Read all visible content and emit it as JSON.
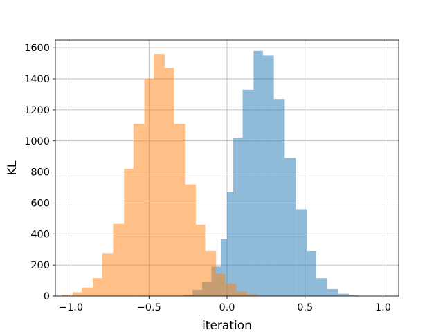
{
  "chart_data": {
    "type": "histogram",
    "title": "",
    "xlabel": "iteration",
    "ylabel": "KL",
    "xlim": [
      -1.1,
      1.1
    ],
    "ylim": [
      0,
      1650
    ],
    "grid": true,
    "legend": "none",
    "x_ticks": [
      -1.0,
      -0.5,
      0.0,
      0.5,
      1.0
    ],
    "x_tick_labels": [
      "−1.0",
      "−0.5",
      "0.0",
      "0.5",
      "1.0"
    ],
    "y_ticks": [
      0,
      200,
      400,
      600,
      800,
      1000,
      1200,
      1400,
      1600
    ],
    "y_tick_labels": [
      "0",
      "200",
      "400",
      "600",
      "800",
      "1000",
      "1200",
      "1400",
      "1600"
    ],
    "series": [
      {
        "color": "#1f77b4",
        "opacity": 0.5,
        "bins": [
          {
            "x0": -0.34,
            "x1": -0.28,
            "count": 2
          },
          {
            "x0": -0.28,
            "x1": -0.22,
            "count": 8
          },
          {
            "x0": -0.22,
            "x1": -0.16,
            "count": 40
          },
          {
            "x0": -0.16,
            "x1": -0.1,
            "count": 90
          },
          {
            "x0": -0.1,
            "x1": -0.04,
            "count": 190
          },
          {
            "x0": -0.04,
            "x1": 0.0,
            "count": 370
          },
          {
            "x0": 0.0,
            "x1": 0.04,
            "count": 670
          },
          {
            "x0": 0.04,
            "x1": 0.1,
            "count": 1020
          },
          {
            "x0": 0.1,
            "x1": 0.17,
            "count": 1330
          },
          {
            "x0": 0.17,
            "x1": 0.23,
            "count": 1580
          },
          {
            "x0": 0.23,
            "x1": 0.3,
            "count": 1550
          },
          {
            "x0": 0.3,
            "x1": 0.37,
            "count": 1270
          },
          {
            "x0": 0.37,
            "x1": 0.44,
            "count": 890
          },
          {
            "x0": 0.44,
            "x1": 0.51,
            "count": 560
          },
          {
            "x0": 0.51,
            "x1": 0.57,
            "count": 290
          },
          {
            "x0": 0.57,
            "x1": 0.64,
            "count": 115
          },
          {
            "x0": 0.64,
            "x1": 0.71,
            "count": 45
          },
          {
            "x0": 0.71,
            "x1": 0.78,
            "count": 15
          },
          {
            "x0": 0.78,
            "x1": 0.84,
            "count": 4
          }
        ]
      },
      {
        "color": "#ff7f0e",
        "opacity": 0.5,
        "bins": [
          {
            "x0": -1.19,
            "x1": -1.12,
            "count": 1
          },
          {
            "x0": -1.12,
            "x1": -1.06,
            "count": 2
          },
          {
            "x0": -1.06,
            "x1": -0.99,
            "count": 8
          },
          {
            "x0": -0.99,
            "x1": -0.93,
            "count": 25
          },
          {
            "x0": -0.93,
            "x1": -0.86,
            "count": 55
          },
          {
            "x0": -0.86,
            "x1": -0.8,
            "count": 115
          },
          {
            "x0": -0.8,
            "x1": -0.73,
            "count": 275
          },
          {
            "x0": -0.73,
            "x1": -0.66,
            "count": 465
          },
          {
            "x0": -0.66,
            "x1": -0.6,
            "count": 820
          },
          {
            "x0": -0.6,
            "x1": -0.53,
            "count": 1110
          },
          {
            "x0": -0.53,
            "x1": -0.47,
            "count": 1400
          },
          {
            "x0": -0.47,
            "x1": -0.4,
            "count": 1560
          },
          {
            "x0": -0.4,
            "x1": -0.34,
            "count": 1470
          },
          {
            "x0": -0.34,
            "x1": -0.27,
            "count": 1110
          },
          {
            "x0": -0.27,
            "x1": -0.2,
            "count": 720
          },
          {
            "x0": -0.2,
            "x1": -0.14,
            "count": 460
          },
          {
            "x0": -0.14,
            "x1": -0.07,
            "count": 290
          },
          {
            "x0": -0.07,
            "x1": -0.01,
            "count": 145
          },
          {
            "x0": -0.01,
            "x1": 0.06,
            "count": 80
          },
          {
            "x0": 0.06,
            "x1": 0.13,
            "count": 30
          },
          {
            "x0": 0.13,
            "x1": 0.19,
            "count": 12
          },
          {
            "x0": 0.19,
            "x1": 0.26,
            "count": 4
          }
        ]
      }
    ]
  }
}
